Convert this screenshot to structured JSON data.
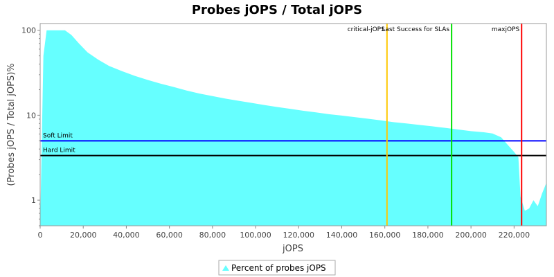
{
  "chart_data": {
    "type": "area",
    "title": "Probes jOPS / Total jOPS",
    "xlabel": "jOPS",
    "ylabel": "(Probes jOPS / Total jOPS)%",
    "y_scale": "log",
    "xlim": [
      0,
      235000
    ],
    "ylim": [
      0.5,
      120
    ],
    "x_ticks": [
      0,
      20000,
      40000,
      60000,
      80000,
      100000,
      120000,
      140000,
      160000,
      180000,
      200000,
      220000
    ],
    "x_tick_labels": [
      "0",
      "20,000",
      "40,000",
      "60,000",
      "80,000",
      "100,000",
      "120,000",
      "140,000",
      "160,000",
      "180,000",
      "200,000",
      "220,000"
    ],
    "y_ticks": [
      1,
      10,
      100
    ],
    "y_tick_labels": [
      "1",
      "10",
      "100"
    ],
    "grid": false,
    "legend_position": "bottom",
    "series": [
      {
        "name": "Percent of probes jOPS",
        "color": "#66ffff",
        "x": [
          0,
          1500,
          3000,
          6000,
          11500,
          14500,
          18000,
          22000,
          27000,
          32000,
          38000,
          44000,
          50000,
          56000,
          62000,
          68000,
          74000,
          80000,
          86000,
          92000,
          98000,
          104000,
          110000,
          116000,
          122000,
          128000,
          134000,
          140000,
          146000,
          152000,
          158000,
          164000,
          170000,
          176000,
          182000,
          188000,
          194000,
          200000,
          206000,
          210000,
          214000,
          217000,
          220000,
          222000,
          223000,
          225000,
          227000,
          229000,
          231000,
          233000,
          235000
        ],
        "y": [
          0.5,
          50,
          100,
          100,
          100,
          88,
          70,
          55,
          45,
          38,
          33,
          29,
          26,
          23.5,
          21.5,
          19.5,
          18,
          16.8,
          15.7,
          14.8,
          14,
          13.2,
          12.5,
          11.9,
          11.3,
          10.8,
          10.3,
          9.9,
          9.5,
          9.1,
          8.7,
          8.3,
          8,
          7.7,
          7.4,
          7.1,
          6.8,
          6.5,
          6.3,
          6.1,
          5.5,
          4.5,
          3.7,
          3.2,
          1.1,
          0.75,
          0.8,
          1.0,
          0.85,
          1.2,
          1.6
        ]
      }
    ],
    "reference_lines_x": [
      {
        "label": "critical-jOPS",
        "value": 161000,
        "color": "#ffc800"
      },
      {
        "label": "Last Success for SLAs",
        "value": 191000,
        "color": "#00e000"
      },
      {
        "label": "maxjOPS",
        "value": 223500,
        "color": "#ff0000"
      }
    ],
    "reference_lines_y": [
      {
        "label": "Soft Limit",
        "value": 5,
        "color": "#0000ff"
      },
      {
        "label": "Hard Limit",
        "value": 3.35,
        "color": "#000000"
      }
    ]
  }
}
